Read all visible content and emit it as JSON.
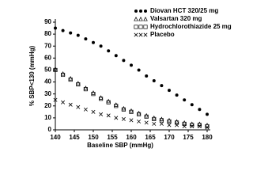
{
  "chart_data": {
    "type": "scatter",
    "x_label": "Baseline SBP (mmHg)",
    "y_label": "% SBP<130 (mmHg)",
    "x": [
      140,
      142,
      144,
      146,
      148,
      150,
      152,
      154,
      156,
      158,
      160,
      162,
      164,
      166,
      168,
      170,
      172,
      174,
      176,
      178,
      180
    ],
    "series": [
      {
        "name": "Diovan HCT 320/25 mg",
        "color": "#000000",
        "marker": "circle",
        "values": [
          85,
          83,
          81,
          79,
          76,
          73,
          70,
          66,
          62,
          58,
          54,
          50,
          45,
          41,
          37,
          33,
          29,
          25,
          21,
          17,
          13
        ]
      },
      {
        "name": "Valsartan 320 mg",
        "color": "#000000",
        "marker": "triangle",
        "values": [
          51,
          47,
          43,
          39,
          35,
          31,
          27,
          24,
          21,
          18,
          16,
          14,
          12,
          10,
          9,
          8,
          7,
          6,
          5,
          5,
          4
        ]
      },
      {
        "name": "Hydrochlorothiazide 25 mg",
        "color": "#000000",
        "marker": "square",
        "values": [
          50,
          46,
          42,
          38,
          34,
          30,
          26,
          23,
          20,
          17,
          15,
          13,
          11,
          9,
          8,
          7,
          6,
          5,
          4,
          4,
          3
        ]
      },
      {
        "name": "Placebo",
        "color": "#000000",
        "marker": "x",
        "values": [
          25,
          23,
          21,
          19,
          17,
          15,
          13,
          12,
          10,
          9,
          8,
          7,
          6,
          5,
          5,
          4,
          4,
          3,
          3,
          3,
          2
        ]
      }
    ],
    "xlim": [
      140,
      180
    ],
    "xticks": [
      140,
      145,
      150,
      155,
      160,
      165,
      170,
      175,
      180
    ],
    "ylim": [
      0,
      90
    ],
    "yticks": [
      0,
      10,
      20,
      30,
      40,
      50,
      60,
      70,
      80,
      90
    ],
    "legend": "upper right"
  }
}
